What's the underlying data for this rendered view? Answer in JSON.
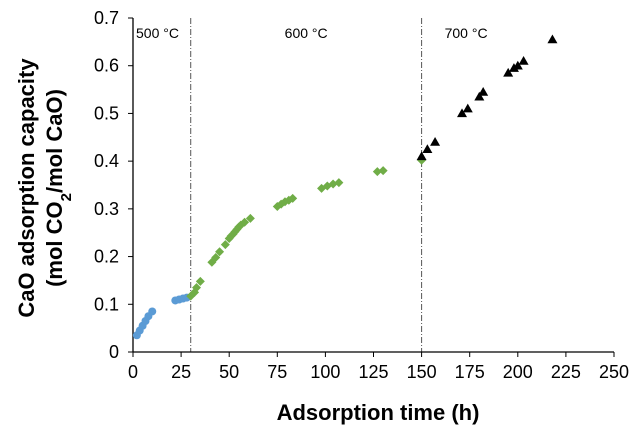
{
  "chart_data": {
    "type": "scatter",
    "title": "",
    "xlabel": "Adsorption time (h)",
    "ylabel_line1": "CaO adsorption capacity",
    "ylabel_line2_prefix": "(mol CO",
    "ylabel_line2_sub": "2",
    "ylabel_line2_suffix": "/mol CaO)",
    "xlim": [
      0,
      250
    ],
    "ylim": [
      0,
      0.7
    ],
    "xticks": [
      0,
      25,
      50,
      75,
      100,
      125,
      150,
      175,
      200,
      225,
      250
    ],
    "yticks": [
      0,
      0.1,
      0.2,
      0.3,
      0.4,
      0.5,
      0.6,
      0.7
    ],
    "xtick_labels": [
      "0",
      "25",
      "50",
      "75",
      "100",
      "125",
      "150",
      "175",
      "200",
      "225",
      "250"
    ],
    "ytick_labels": [
      "0",
      "0.1",
      "0.2",
      "0.3",
      "0.4",
      "0.5",
      "0.6",
      "0.7"
    ],
    "grid": false,
    "legend": "none",
    "regions": [
      {
        "label": "500 °C",
        "x_start": 0,
        "x_end": 30
      },
      {
        "label": "600 °C",
        "x_start": 30,
        "x_end": 150
      },
      {
        "label": "700 °C",
        "x_start": 150,
        "x_end": 250
      }
    ],
    "dividers_x": [
      30,
      150
    ],
    "series": [
      {
        "marker": "circle",
        "color": "#5b9bd5",
        "points": [
          [
            2,
            0.035
          ],
          [
            3.5,
            0.045
          ],
          [
            5,
            0.055
          ],
          [
            6.5,
            0.065
          ],
          [
            8,
            0.075
          ],
          [
            10,
            0.085
          ],
          [
            22,
            0.108
          ],
          [
            24,
            0.11
          ],
          [
            26,
            0.112
          ],
          [
            28,
            0.114
          ]
        ]
      },
      {
        "marker": "diamond",
        "color": "#70ad47",
        "points": [
          [
            30,
            0.117
          ],
          [
            32,
            0.125
          ],
          [
            33,
            0.135
          ],
          [
            35,
            0.148
          ],
          [
            41,
            0.188
          ],
          [
            43,
            0.198
          ],
          [
            45,
            0.21
          ],
          [
            48,
            0.225
          ],
          [
            50,
            0.238
          ],
          [
            51,
            0.243
          ],
          [
            52,
            0.247
          ],
          [
            53,
            0.252
          ],
          [
            54,
            0.257
          ],
          [
            55,
            0.262
          ],
          [
            56,
            0.266
          ],
          [
            58,
            0.272
          ],
          [
            61,
            0.28
          ],
          [
            75,
            0.305
          ],
          [
            77,
            0.31
          ],
          [
            79,
            0.315
          ],
          [
            81,
            0.318
          ],
          [
            83,
            0.322
          ],
          [
            98,
            0.343
          ],
          [
            101,
            0.348
          ],
          [
            104,
            0.352
          ],
          [
            107,
            0.355
          ],
          [
            127,
            0.378
          ],
          [
            130,
            0.38
          ],
          [
            150,
            0.402
          ]
        ]
      },
      {
        "marker": "triangle",
        "color": "#000000",
        "points": [
          [
            150,
            0.41
          ],
          [
            153,
            0.425
          ],
          [
            157,
            0.44
          ],
          [
            171,
            0.5
          ],
          [
            174,
            0.51
          ],
          [
            180,
            0.535
          ],
          [
            182,
            0.545
          ],
          [
            195,
            0.585
          ],
          [
            198,
            0.595
          ],
          [
            200,
            0.6
          ],
          [
            203,
            0.61
          ],
          [
            218,
            0.655
          ]
        ]
      }
    ]
  }
}
